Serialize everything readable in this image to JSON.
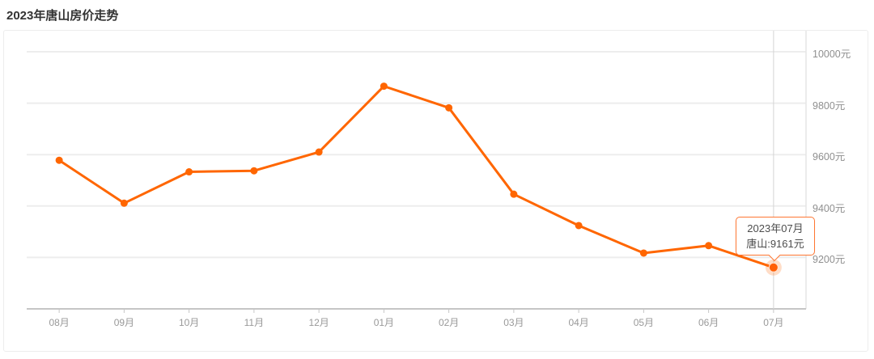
{
  "page": {
    "title": "2023年唐山房价走势"
  },
  "chart_data": {
    "type": "line",
    "title": "2023年唐山房价走势",
    "categories": [
      "08月",
      "09月",
      "10月",
      "11月",
      "12月",
      "01月",
      "02月",
      "03月",
      "04月",
      "05月",
      "06月",
      "07月"
    ],
    "series": [
      {
        "name": "唐山",
        "values": [
          9578,
          9411,
          9533,
          9537,
          9610,
          9866,
          9782,
          9446,
          9324,
          9217,
          9246,
          9161
        ]
      }
    ],
    "unit": "元",
    "ylim": [
      9000,
      10000
    ],
    "yticks": [
      {
        "value": 10000,
        "label": "10000元"
      },
      {
        "value": 9800,
        "label": "9800元"
      },
      {
        "value": 9600,
        "label": "9600元"
      },
      {
        "value": 9400,
        "label": "9400元"
      },
      {
        "value": 9200,
        "label": "9200元"
      }
    ],
    "legend_position": "none",
    "grid": true,
    "line_color": "#ff6600",
    "highlight_index": 11,
    "tooltip": {
      "title": "2023年07月",
      "value": "唐山:9161元"
    }
  },
  "colors": {
    "accent": "#ff6600",
    "tooltip_border": "#ff7733",
    "grid_line": "#ededed",
    "axis_line": "#c6c6c6",
    "crosshair": "#d4d4d4",
    "label_text": "#999999"
  }
}
